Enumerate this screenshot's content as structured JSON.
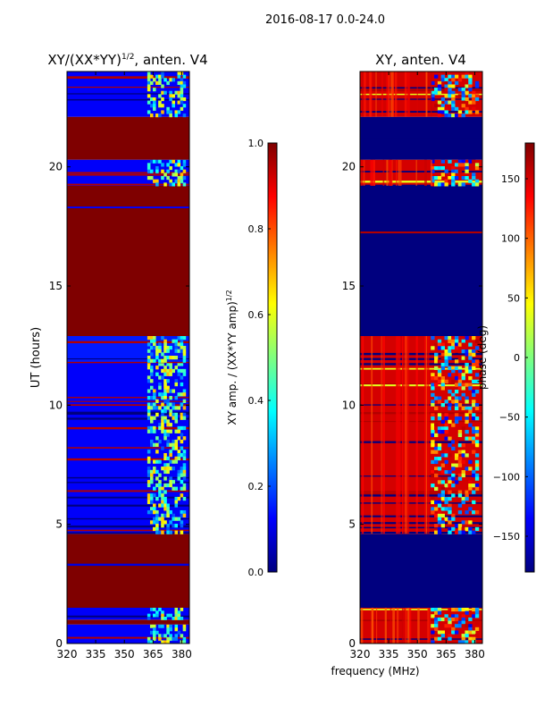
{
  "figure_title": "2016-08-17 0.0-24.0",
  "xlabel_shared": "frequency (MHz)",
  "colors": {
    "jet_stops": [
      "#00007f",
      "#0000ff",
      "#007fff",
      "#00ffff",
      "#7fff7f",
      "#ffff00",
      "#ff7f00",
      "#ff0000",
      "#7f0000"
    ]
  },
  "chart_data": [
    {
      "type": "heatmap",
      "title_main": "XY/(XX*YY)",
      "title_sup": "1/2",
      "title_rest": ", anten. V4",
      "xlabel": "",
      "ylabel": "UT (hours)",
      "xlim": [
        320,
        384
      ],
      "ylim": [
        0,
        24
      ],
      "x_ticks": [
        320,
        335,
        350,
        365,
        380
      ],
      "y_ticks": [
        0,
        5,
        10,
        15,
        20
      ],
      "colorbar": {
        "label_main": "XY amp. / (XX*YY amp)",
        "label_sup": "1/2",
        "range": [
          0.0,
          1.0
        ],
        "ticks": [
          "0.0",
          "0.2",
          "0.4",
          "0.6",
          "0.8",
          "1.0"
        ],
        "tick_values": [
          0.0,
          0.2,
          0.4,
          0.6,
          0.8,
          1.0
        ]
      },
      "regions": [
        {
          "y": [
            0,
            0.8
          ],
          "value": 0.12
        },
        {
          "y": [
            0.8,
            1.0
          ],
          "value": 1.0
        },
        {
          "y": [
            1.0,
            1.5
          ],
          "value": 0.12
        },
        {
          "y": [
            1.5,
            4.6
          ],
          "value": 1.0
        },
        {
          "y": [
            4.6,
            11.8
          ],
          "value": 0.12
        },
        {
          "y": [
            11.8,
            12.9
          ],
          "value": 0.15
        },
        {
          "y": [
            12.9,
            19.2
          ],
          "value": 1.0
        },
        {
          "y": [
            19.2,
            20.3
          ],
          "value": 0.12
        },
        {
          "y": [
            20.3,
            22.1
          ],
          "value": 1.0
        },
        {
          "y": [
            22.1,
            24.0
          ],
          "value": 0.12
        }
      ],
      "noise_band_x": [
        362,
        382
      ]
    },
    {
      "type": "heatmap",
      "title_main": "XY, anten. V4",
      "xlabel": "frequency (MHz)",
      "ylabel": "",
      "xlim": [
        320,
        384
      ],
      "ylim": [
        0,
        24
      ],
      "x_ticks": [
        320,
        335,
        350,
        365,
        380
      ],
      "y_ticks": [
        0,
        5,
        10,
        15,
        20
      ],
      "colorbar": {
        "label_main": "phase (deg)",
        "range": [
          -180,
          180
        ],
        "ticks": [
          "−150",
          "−100",
          "−50",
          "0",
          "50",
          "100",
          "150"
        ],
        "tick_values": [
          -150,
          -100,
          -50,
          0,
          50,
          100,
          150
        ]
      },
      "regions": [
        {
          "y": [
            0,
            1.5
          ],
          "value": 150
        },
        {
          "y": [
            1.5,
            4.6
          ],
          "value": -180
        },
        {
          "y": [
            4.6,
            12.9
          ],
          "value": 150
        },
        {
          "y": [
            12.9,
            19.2
          ],
          "value": -180
        },
        {
          "y": [
            19.2,
            20.3
          ],
          "value": 150
        },
        {
          "y": [
            20.3,
            22.1
          ],
          "value": -180
        },
        {
          "y": [
            22.1,
            24.0
          ],
          "value": 150
        }
      ],
      "noise_band_x": [
        357,
        382
      ]
    }
  ]
}
